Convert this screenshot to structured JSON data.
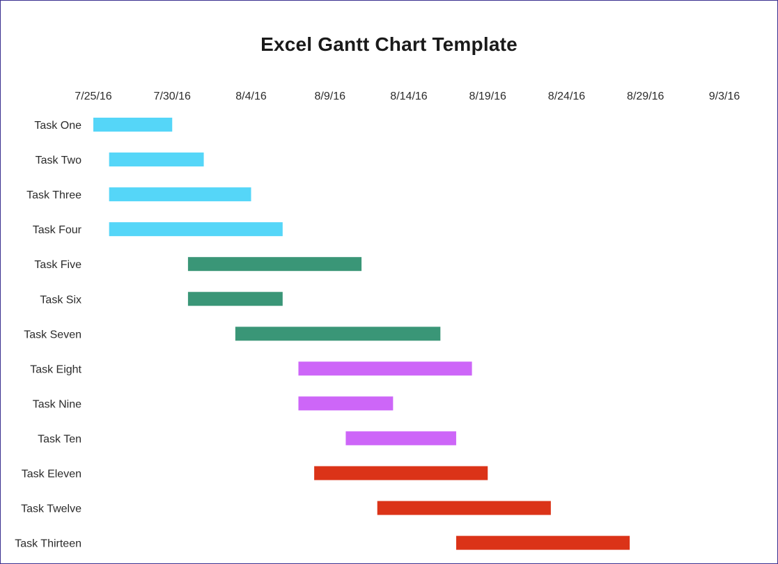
{
  "chart_data": {
    "type": "bar",
    "orientation": "horizontal",
    "subtype": "gantt",
    "title": "Excel Gantt Chart Template",
    "xlabel": "",
    "ylabel": "",
    "grid": false,
    "legend": "none",
    "x_axis_position": "top",
    "xlim": [
      "2016-07-25",
      "2016-09-03"
    ],
    "x_ticks": [
      "2016-07-25",
      "2016-07-30",
      "2016-08-04",
      "2016-08-09",
      "2016-08-14",
      "2016-08-19",
      "2016-08-24",
      "2016-08-29",
      "2016-09-03"
    ],
    "x_tick_labels": [
      "7/25/16",
      "7/30/16",
      "8/4/16",
      "8/9/16",
      "8/14/16",
      "8/19/16",
      "8/24/16",
      "8/29/16",
      "9/3/16"
    ],
    "tasks": [
      {
        "label": "Task One",
        "start": "2016-07-25",
        "end": "2016-07-30",
        "color": "#55d6f8"
      },
      {
        "label": "Task Two",
        "start": "2016-07-26",
        "end": "2016-08-01",
        "color": "#55d6f8"
      },
      {
        "label": "Task Three",
        "start": "2016-07-26",
        "end": "2016-08-04",
        "color": "#55d6f8"
      },
      {
        "label": "Task Four",
        "start": "2016-07-26",
        "end": "2016-08-06",
        "color": "#55d6f8"
      },
      {
        "label": "Task Five",
        "start": "2016-07-31",
        "end": "2016-08-11",
        "color": "#3a9677"
      },
      {
        "label": "Task Six",
        "start": "2016-07-31",
        "end": "2016-08-06",
        "color": "#3a9677"
      },
      {
        "label": "Task Seven",
        "start": "2016-08-03",
        "end": "2016-08-16",
        "color": "#3a9677"
      },
      {
        "label": "Task Eight",
        "start": "2016-08-07",
        "end": "2016-08-18",
        "color": "#cd66f8"
      },
      {
        "label": "Task Nine",
        "start": "2016-08-07",
        "end": "2016-08-13",
        "color": "#cd66f8"
      },
      {
        "label": "Task Ten",
        "start": "2016-08-10",
        "end": "2016-08-17",
        "color": "#cd66f8"
      },
      {
        "label": "Task Eleven",
        "start": "2016-08-08",
        "end": "2016-08-19",
        "color": "#db3318"
      },
      {
        "label": "Task Twelve",
        "start": "2016-08-12",
        "end": "2016-08-23",
        "color": "#db3318"
      },
      {
        "label": "Task Thirteen",
        "start": "2016-08-17",
        "end": "2016-08-28",
        "color": "#db3318"
      }
    ]
  }
}
